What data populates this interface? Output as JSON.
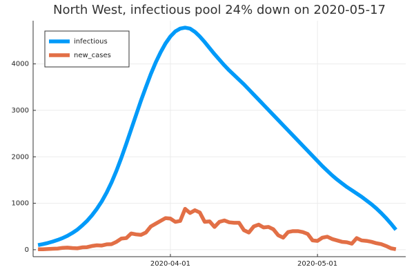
{
  "chart_data": {
    "type": "line",
    "title": "North West, infectious pool 24% down on 2020-05-17",
    "x": [
      "2020-03-05",
      "2020-03-06",
      "2020-03-07",
      "2020-03-08",
      "2020-03-09",
      "2020-03-10",
      "2020-03-11",
      "2020-03-12",
      "2020-03-13",
      "2020-03-14",
      "2020-03-15",
      "2020-03-16",
      "2020-03-17",
      "2020-03-18",
      "2020-03-19",
      "2020-03-20",
      "2020-03-21",
      "2020-03-22",
      "2020-03-23",
      "2020-03-24",
      "2020-03-25",
      "2020-03-26",
      "2020-03-27",
      "2020-03-28",
      "2020-03-29",
      "2020-03-30",
      "2020-03-31",
      "2020-04-01",
      "2020-04-02",
      "2020-04-03",
      "2020-04-04",
      "2020-04-05",
      "2020-04-06",
      "2020-04-07",
      "2020-04-08",
      "2020-04-09",
      "2020-04-10",
      "2020-04-11",
      "2020-04-12",
      "2020-04-13",
      "2020-04-14",
      "2020-04-15",
      "2020-04-16",
      "2020-04-17",
      "2020-04-18",
      "2020-04-19",
      "2020-04-20",
      "2020-04-21",
      "2020-04-22",
      "2020-04-23",
      "2020-04-24",
      "2020-04-25",
      "2020-04-26",
      "2020-04-27",
      "2020-04-28",
      "2020-04-29",
      "2020-04-30",
      "2020-05-01",
      "2020-05-02",
      "2020-05-03",
      "2020-05-04",
      "2020-05-05",
      "2020-05-06",
      "2020-05-07",
      "2020-05-08",
      "2020-05-09",
      "2020-05-10",
      "2020-05-11",
      "2020-05-12",
      "2020-05-13",
      "2020-05-14",
      "2020-05-15",
      "2020-05-16",
      "2020-05-17"
    ],
    "series": [
      {
        "name": "infectious",
        "color": "#009af9",
        "values": [
          100,
          120,
          145,
          175,
          210,
          250,
          300,
          360,
          430,
          520,
          620,
          740,
          880,
          1040,
          1230,
          1450,
          1700,
          1980,
          2280,
          2590,
          2900,
          3210,
          3500,
          3780,
          4030,
          4250,
          4440,
          4590,
          4700,
          4760,
          4780,
          4760,
          4690,
          4590,
          4470,
          4340,
          4210,
          4090,
          3970,
          3860,
          3760,
          3660,
          3560,
          3450,
          3340,
          3230,
          3120,
          3010,
          2900,
          2790,
          2680,
          2570,
          2460,
          2350,
          2240,
          2130,
          2020,
          1910,
          1800,
          1700,
          1600,
          1510,
          1430,
          1350,
          1280,
          1210,
          1140,
          1060,
          980,
          890,
          790,
          680,
          560,
          430
        ]
      },
      {
        "name": "new_cases",
        "color": "#e26f46",
        "values": [
          10,
          10,
          15,
          20,
          25,
          40,
          45,
          35,
          30,
          50,
          55,
          80,
          95,
          90,
          115,
          120,
          170,
          240,
          250,
          350,
          330,
          320,
          370,
          500,
          560,
          620,
          680,
          670,
          600,
          620,
          880,
          790,
          850,
          800,
          600,
          610,
          490,
          600,
          630,
          590,
          580,
          580,
          420,
          370,
          500,
          540,
          480,
          490,
          440,
          310,
          260,
          380,
          400,
          400,
          380,
          340,
          200,
          190,
          260,
          280,
          230,
          200,
          170,
          160,
          130,
          250,
          200,
          190,
          170,
          140,
          120,
          80,
          30,
          10
        ]
      }
    ],
    "xlim": [
      "2020-03-04",
      "2020-05-19"
    ],
    "xticks": [
      "2020-04-01",
      "2020-05-01"
    ],
    "ylim": [
      -150,
      4930
    ],
    "yticks": [
      0,
      1000,
      2000,
      3000,
      4000
    ],
    "grid": true,
    "legend": "top-left"
  }
}
